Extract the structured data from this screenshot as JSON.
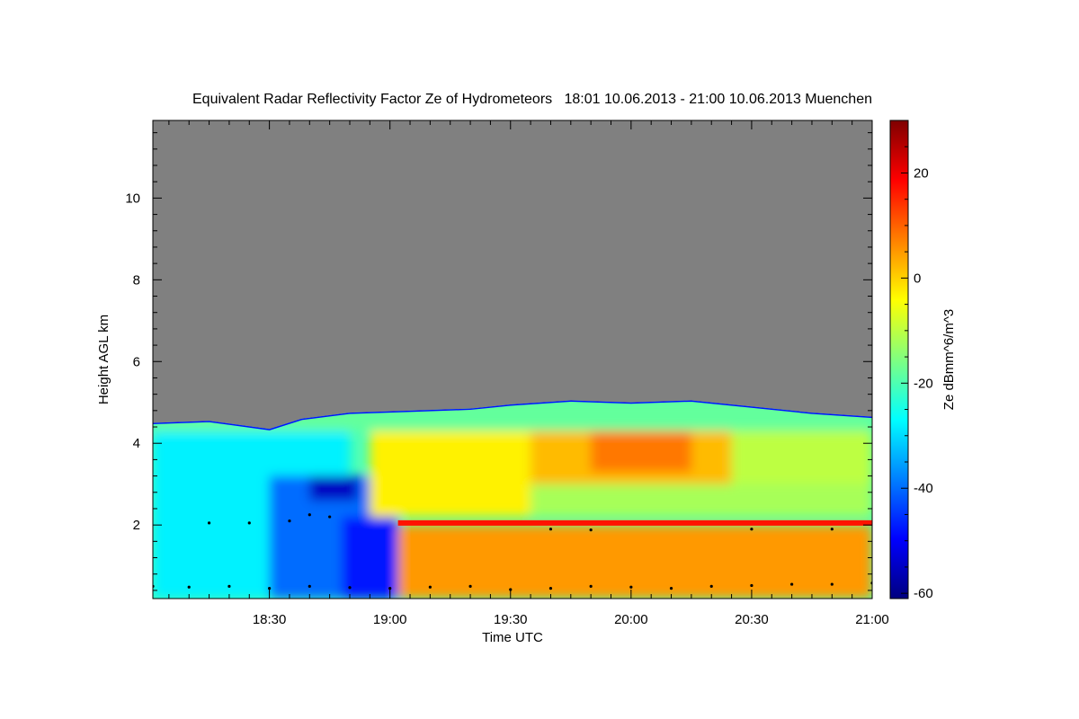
{
  "chart_data": {
    "type": "heatmap",
    "title": "Equivalent Radar Reflectivity Factor Ze of Hydrometeors   18:01 10.06.2013 - 21:00 10.06.2013 Muenchen",
    "xlabel": "Time UTC",
    "ylabel": "Height AGL km",
    "x_ticks": [
      {
        "label": "18:30",
        "minutes": 1110
      },
      {
        "label": "19:00",
        "minutes": 1140
      },
      {
        "label": "19:30",
        "minutes": 1170
      },
      {
        "label": "20:00",
        "minutes": 1200
      },
      {
        "label": "20:30",
        "minutes": 1230
      },
      {
        "label": "21:00",
        "minutes": 1260
      }
    ],
    "y_ticks": [
      2,
      4,
      6,
      8,
      10
    ],
    "xlim_minutes": [
      1081,
      1260
    ],
    "ylim": [
      0.2,
      11.9
    ],
    "colorbar": {
      "label": "Ze dBmm^6/m^3",
      "range": [
        -61,
        30
      ],
      "ticks": [
        -60,
        -40,
        -20,
        0,
        20
      ],
      "colors": [
        "#00007f",
        "#0000ff",
        "#0080ff",
        "#00ffff",
        "#80ff80",
        "#ffff00",
        "#ff8000",
        "#ff0000",
        "#7f0000"
      ]
    },
    "background_color": "#808080",
    "echo_top_km": [
      [
        1081,
        4.5
      ],
      [
        1095,
        4.55
      ],
      [
        1110,
        4.35
      ],
      [
        1118,
        4.6
      ],
      [
        1130,
        4.75
      ],
      [
        1145,
        4.8
      ],
      [
        1160,
        4.85
      ],
      [
        1170,
        4.95
      ],
      [
        1185,
        5.05
      ],
      [
        1200,
        5.0
      ],
      [
        1215,
        5.05
      ],
      [
        1230,
        4.9
      ],
      [
        1245,
        4.75
      ],
      [
        1260,
        4.65
      ]
    ],
    "melting_layer": {
      "height_km": 2.05,
      "start_minutes": 1142,
      "end_minutes": 1260,
      "dbz": 17
    },
    "regions": [
      {
        "t0": 1081,
        "t1": 1130,
        "h0": 0.2,
        "h1": 4.6,
        "dbz": -28
      },
      {
        "t0": 1110,
        "t1": 1138,
        "h0": 0.2,
        "h1": 3.2,
        "dbz": -40
      },
      {
        "t0": 1120,
        "t1": 1132,
        "h0": 2.6,
        "h1": 3.2,
        "dbz": -55
      },
      {
        "t0": 1128,
        "t1": 1142,
        "h0": 0.2,
        "h1": 2.2,
        "dbz": -48
      },
      {
        "t0": 1135,
        "t1": 1175,
        "h0": 2.2,
        "h1": 4.8,
        "dbz": -3
      },
      {
        "t0": 1142,
        "t1": 1260,
        "h0": 0.2,
        "h1": 2.0,
        "dbz": 5
      },
      {
        "t0": 1175,
        "t1": 1260,
        "h0": 2.2,
        "h1": 3.0,
        "dbz": -12
      },
      {
        "t0": 1175,
        "t1": 1225,
        "h0": 3.0,
        "h1": 4.8,
        "dbz": 2
      },
      {
        "t0": 1190,
        "t1": 1215,
        "h0": 3.3,
        "h1": 4.3,
        "dbz": 8
      },
      {
        "t0": 1225,
        "t1": 1260,
        "h0": 3.0,
        "h1": 4.6,
        "dbz": -10
      },
      {
        "t0": 1081,
        "t1": 1260,
        "h0": 4.3,
        "h1": 5.1,
        "dbz": -18
      }
    ],
    "cloud_base_points_km": [
      [
        1081,
        0.5
      ],
      [
        1090,
        0.48
      ],
      [
        1100,
        0.5
      ],
      [
        1110,
        0.45
      ],
      [
        1120,
        0.5
      ],
      [
        1130,
        0.47
      ],
      [
        1140,
        0.45
      ],
      [
        1150,
        0.48
      ],
      [
        1160,
        0.5
      ],
      [
        1170,
        0.42
      ],
      [
        1180,
        0.45
      ],
      [
        1190,
        0.5
      ],
      [
        1200,
        0.48
      ],
      [
        1210,
        0.45
      ],
      [
        1220,
        0.5
      ],
      [
        1230,
        0.52
      ],
      [
        1240,
        0.55
      ],
      [
        1250,
        0.55
      ],
      [
        1260,
        0.58
      ],
      [
        1095,
        2.05
      ],
      [
        1105,
        2.05
      ],
      [
        1115,
        2.1
      ],
      [
        1120,
        2.25
      ],
      [
        1125,
        2.2
      ],
      [
        1180,
        1.9
      ],
      [
        1190,
        1.88
      ],
      [
        1230,
        1.9
      ],
      [
        1250,
        1.9
      ]
    ]
  }
}
